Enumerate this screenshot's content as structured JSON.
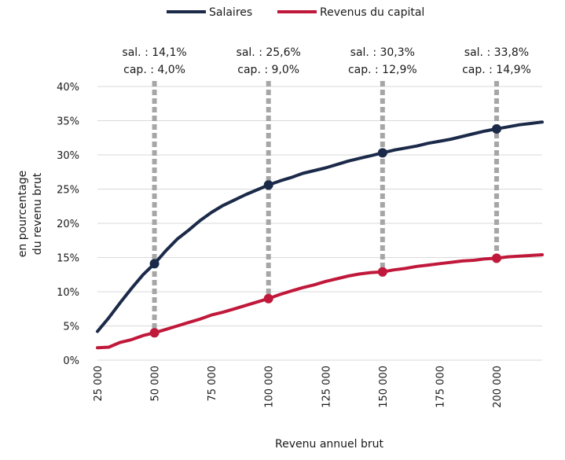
{
  "chart_data": {
    "type": "line",
    "xlabel": "Revenu annuel brut",
    "ylabel_lines": [
      "en pourcentage",
      "du revenu brut"
    ],
    "xlim": [
      25000,
      220000
    ],
    "ylim": [
      0,
      40
    ],
    "x_ticks": [
      25000,
      50000,
      75000,
      100000,
      125000,
      150000,
      175000,
      200000
    ],
    "x_tick_labels": [
      "25 000",
      "50 000",
      "75 000",
      "100 000",
      "125 000",
      "150 000",
      "175 000",
      "200 000"
    ],
    "y_ticks": [
      0,
      5,
      10,
      15,
      20,
      25,
      30,
      35,
      40
    ],
    "y_tick_labels": [
      "0%",
      "5%",
      "10%",
      "15%",
      "20%",
      "25%",
      "30%",
      "35%",
      "40%"
    ],
    "grid": "horizontal",
    "legend": "top",
    "series": [
      {
        "name": "Salaires",
        "color": "#1b2a49",
        "x": [
          25000,
          30000,
          35000,
          40000,
          45000,
          50000,
          55000,
          60000,
          65000,
          70000,
          75000,
          80000,
          85000,
          90000,
          95000,
          100000,
          105000,
          110000,
          115000,
          120000,
          125000,
          130000,
          135000,
          140000,
          145000,
          150000,
          155000,
          160000,
          165000,
          170000,
          175000,
          180000,
          185000,
          190000,
          195000,
          200000,
          205000,
          210000,
          215000,
          220000
        ],
        "values": [
          4.2,
          6.2,
          8.4,
          10.5,
          12.5,
          14.1,
          16.0,
          17.7,
          19.0,
          20.4,
          21.6,
          22.6,
          23.4,
          24.2,
          24.9,
          25.6,
          26.2,
          26.7,
          27.3,
          27.7,
          28.1,
          28.6,
          29.1,
          29.5,
          29.9,
          30.3,
          30.7,
          31.0,
          31.3,
          31.7,
          32.0,
          32.3,
          32.7,
          33.1,
          33.5,
          33.8,
          34.1,
          34.4,
          34.6,
          34.8
        ]
      },
      {
        "name": "Revenus du capital",
        "color": "#c0183a",
        "x": [
          25000,
          30000,
          35000,
          40000,
          45000,
          50000,
          55000,
          60000,
          65000,
          70000,
          75000,
          80000,
          85000,
          90000,
          95000,
          100000,
          105000,
          110000,
          115000,
          120000,
          125000,
          130000,
          135000,
          140000,
          145000,
          150000,
          155000,
          160000,
          165000,
          170000,
          175000,
          180000,
          185000,
          190000,
          195000,
          200000,
          205000,
          210000,
          215000,
          220000
        ],
        "values": [
          1.8,
          1.9,
          2.6,
          3.0,
          3.6,
          4.0,
          4.5,
          5.0,
          5.5,
          6.0,
          6.6,
          7.0,
          7.5,
          8.0,
          8.5,
          9.0,
          9.6,
          10.1,
          10.6,
          11.0,
          11.5,
          11.9,
          12.3,
          12.6,
          12.8,
          12.9,
          13.2,
          13.4,
          13.7,
          13.9,
          14.1,
          14.3,
          14.5,
          14.6,
          14.8,
          14.9,
          15.1,
          15.2,
          15.3,
          15.4
        ]
      }
    ],
    "markers": [
      {
        "x": 50000,
        "sal_value": 14.1,
        "cap_value": 4.0,
        "sal_label": "sal. : 14,1%",
        "cap_label": "cap. : 4,0%"
      },
      {
        "x": 100000,
        "sal_value": 25.6,
        "cap_value": 9.0,
        "sal_label": "sal. : 25,6%",
        "cap_label": "cap. : 9,0%"
      },
      {
        "x": 150000,
        "sal_value": 30.3,
        "cap_value": 12.9,
        "sal_label": "sal. : 30,3%",
        "cap_label": "cap. : 12,9%"
      },
      {
        "x": 200000,
        "sal_value": 33.8,
        "cap_value": 14.9,
        "sal_label": "sal. : 33,8%",
        "cap_label": "cap. : 14,9%"
      }
    ],
    "colors": {
      "grid": "#d9d9d9",
      "guide": "#a6a6a6",
      "text": "#1a1a1a"
    }
  }
}
